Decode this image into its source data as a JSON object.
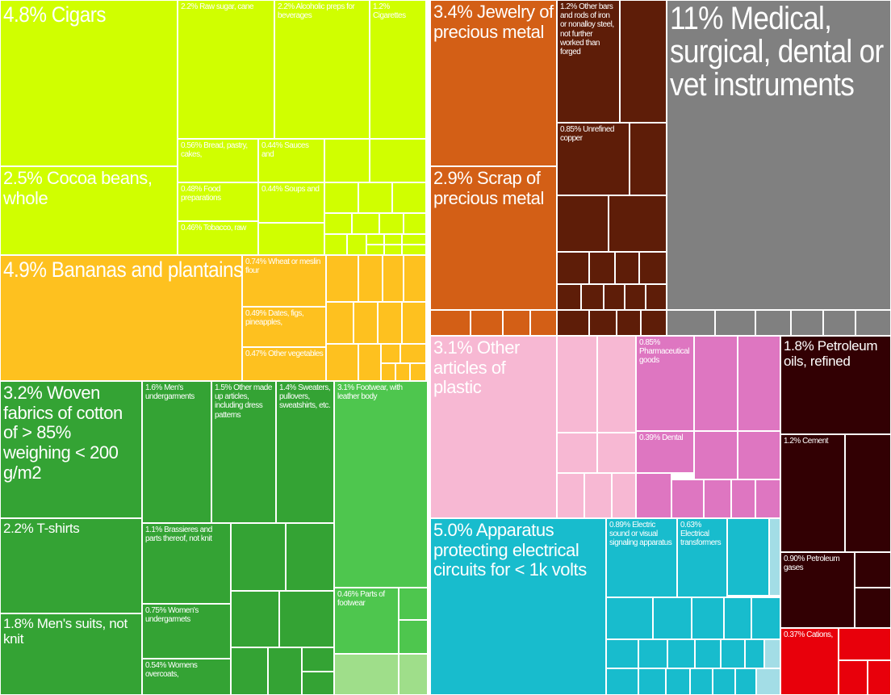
{
  "colors": {
    "food": "#d0ff00",
    "vegetable": "#fec11f",
    "textile": "#34a334",
    "textile_light": "#4ec64e",
    "textile_pale": "#9fde8a",
    "metal": "#d35f16",
    "metal_dark": "#5e1d08",
    "instrument": "#808080",
    "plastic": "#f7b8d3",
    "chemical": "#de76c1",
    "mineral": "#320003",
    "mineral_red": "#e8000b",
    "machine": "#18bccd",
    "machine_light": "#a3dde6"
  },
  "chart_data": {
    "type": "treemap",
    "unit": "%",
    "items": [
      {
        "label": "4.8% Cigars",
        "value": 4.8,
        "group": "food"
      },
      {
        "label": "2.2% Raw sugar, cane",
        "value": 2.2,
        "group": "food"
      },
      {
        "label": "2.2% Alcoholic preps for beverages",
        "value": 2.2,
        "group": "food"
      },
      {
        "label": "1.2% Cigarettes",
        "value": 1.2,
        "group": "food"
      },
      {
        "label": "2.5% Cocoa beans, whole",
        "value": 2.5,
        "group": "food"
      },
      {
        "label": "0.56% Bread, pastry, cakes,",
        "value": 0.56,
        "group": "food"
      },
      {
        "label": "0.44% Sauces and",
        "value": 0.44,
        "group": "food"
      },
      {
        "label": "0.48% Food preparations",
        "value": 0.48,
        "group": "food"
      },
      {
        "label": "0.44% Soups and",
        "value": 0.44,
        "group": "food"
      },
      {
        "label": "0.46% Tobacco, raw",
        "value": 0.46,
        "group": "food"
      },
      {
        "label": "4.9% Bananas and plantains",
        "value": 4.9,
        "group": "vegetable"
      },
      {
        "label": "0.74% Wheat or meslin flour",
        "value": 0.74,
        "group": "vegetable"
      },
      {
        "label": "0.49% Dates, figs, pineapples,",
        "value": 0.49,
        "group": "vegetable"
      },
      {
        "label": "0.47% Other vegetables",
        "value": 0.47,
        "group": "vegetable"
      },
      {
        "label": "3.2% Woven fabrics of cotton of > 85% weighing < 200 g/m2",
        "value": 3.2,
        "group": "textile"
      },
      {
        "label": "1.6% Men's undergarments",
        "value": 1.6,
        "group": "textile"
      },
      {
        "label": "1.5% Other made up articles, including dress patterns",
        "value": 1.5,
        "group": "textile"
      },
      {
        "label": "1.4% Sweaters, pullovers, sweatshirts, etc.",
        "value": 1.4,
        "group": "textile"
      },
      {
        "label": "2.2% T-shirts",
        "value": 2.2,
        "group": "textile"
      },
      {
        "label": "1.1% Brassieres and parts thereof, not knit",
        "value": 1.1,
        "group": "textile"
      },
      {
        "label": "1.8% Men's suits, not knit",
        "value": 1.8,
        "group": "textile"
      },
      {
        "label": "0.75% Women's undergarmets",
        "value": 0.75,
        "group": "textile"
      },
      {
        "label": "0.54% Womens overcoats,",
        "value": 0.54,
        "group": "textile"
      },
      {
        "label": "3.1% Footwear, with leather body",
        "value": 3.1,
        "group": "footwear"
      },
      {
        "label": "0.46% Parts of footwear",
        "value": 0.46,
        "group": "footwear"
      },
      {
        "label": "3.4% Jewelry of precious metal",
        "value": 3.4,
        "group": "metal"
      },
      {
        "label": "2.9% Scrap of precious metal",
        "value": 2.9,
        "group": "metal"
      },
      {
        "label": "1.2% Other bars and rods of iron or nonalloy steel, not further worked than forged",
        "value": 1.2,
        "group": "metal"
      },
      {
        "label": "0.85% Unrefined copper",
        "value": 0.85,
        "group": "metal"
      },
      {
        "label": "11% Medical, surgical, dental or vet instruments",
        "value": 11,
        "group": "instrument"
      },
      {
        "label": "3.1% Other articles of plastic",
        "value": 3.1,
        "group": "plastic"
      },
      {
        "label": "0.85% Pharmaceutical goods",
        "value": 0.85,
        "group": "chemical"
      },
      {
        "label": "0.39% Dental",
        "value": 0.39,
        "group": "chemical"
      },
      {
        "label": "1.8% Petroleum oils, refined",
        "value": 1.8,
        "group": "mineral"
      },
      {
        "label": "1.2% Cement",
        "value": 1.2,
        "group": "mineral"
      },
      {
        "label": "0.90% Petroleum gases",
        "value": 0.9,
        "group": "mineral"
      },
      {
        "label": "0.37% Cations,",
        "value": 0.37,
        "group": "mineral"
      },
      {
        "label": "5.0% Apparatus protecting electrical circuits for < 1k volts",
        "value": 5.0,
        "group": "machine"
      },
      {
        "label": "0.89% Electric sound or visual signaling apparatus",
        "value": 0.89,
        "group": "machine"
      },
      {
        "label": "0.63% Electrical transformers",
        "value": 0.63,
        "group": "machine"
      }
    ]
  }
}
